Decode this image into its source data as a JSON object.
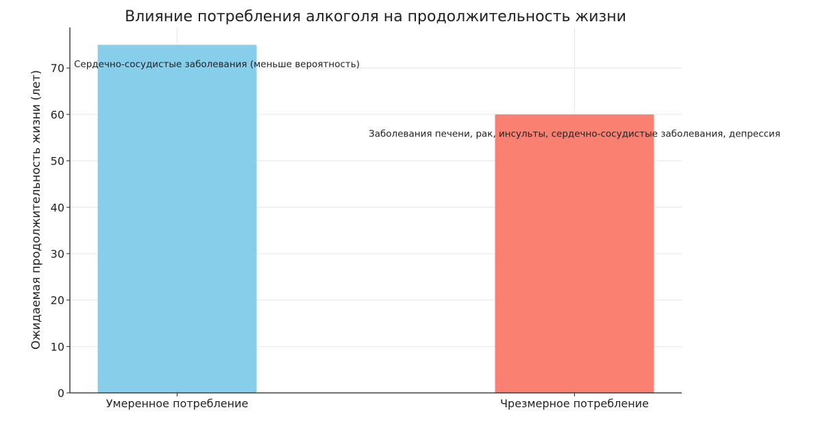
{
  "chart_data": {
    "type": "bar",
    "title": "Влияние потребления алкоголя на продолжительность жизни",
    "xlabel": "",
    "ylabel": "Ожидаемая продолжительность жизни (лет)",
    "categories": [
      "Умеренное потребление",
      "Чрезмерное потребление"
    ],
    "values": [
      75,
      60
    ],
    "colors": [
      "#87CEEB",
      "#FA8072"
    ],
    "ylim": [
      0,
      78.75
    ],
    "yticks": [
      0,
      10,
      20,
      30,
      40,
      50,
      60,
      70
    ],
    "grid": true,
    "annotations": [
      {
        "category": "Умеренное потребление",
        "y": 70,
        "text": "Сердечно-сосудистые заболевания (меньше вероятность)"
      },
      {
        "category": "Чрезмерное потребление",
        "y": 55,
        "text": "Заболевания печени, рак, инсульты, сердечно-сосудистые заболевания, депрессия"
      }
    ]
  }
}
